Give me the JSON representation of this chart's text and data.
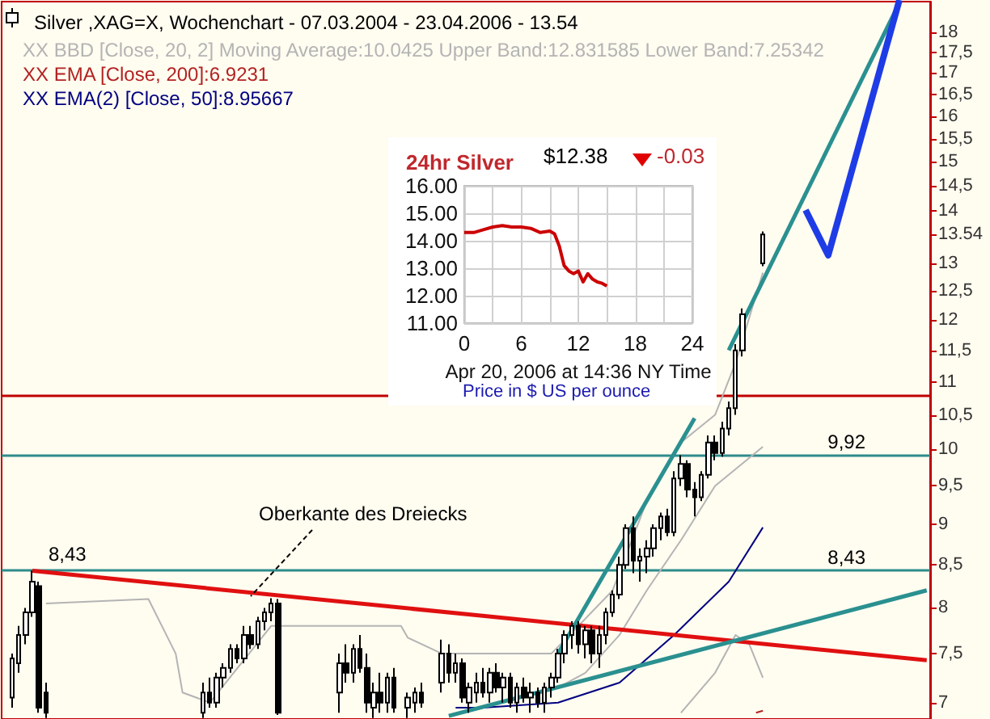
{
  "chart_data": [
    {
      "type": "candlestick",
      "title": "Silver ,XAG=X, Wochenchart - 07.03.2004 - 23.04.2006 - 13.54",
      "color": "#000000",
      "legend": "top left",
      "tick_labels": "y",
      "log": true,
      "categories": [
        null,
        null,
        null,
        null,
        null,
        null,
        null,
        null,
        null,
        null,
        null,
        null,
        null,
        null,
        null,
        null,
        null,
        null,
        null,
        null,
        null,
        null,
        null,
        null,
        null,
        null,
        null,
        null,
        null,
        null,
        null,
        null,
        null,
        null,
        null,
        null,
        null,
        null,
        null,
        null,
        null,
        null,
        null,
        null,
        null,
        null,
        null,
        null,
        null,
        null,
        null,
        null,
        null,
        null,
        null,
        null,
        null,
        null,
        null,
        null,
        null,
        null,
        null,
        null,
        null,
        null,
        null,
        null,
        null,
        null,
        null,
        null,
        null,
        null,
        null,
        null,
        null,
        null,
        null,
        null,
        null,
        null,
        null,
        null,
        null,
        null,
        null,
        null,
        null,
        null,
        null,
        null,
        null,
        null,
        null,
        null,
        null,
        null,
        null,
        null,
        null,
        null,
        null,
        null,
        null,
        null,
        null,
        null,
        null,
        null,
        null,
        null,
        null,
        null,
        null,
        null,
        null,
        null,
        null,
        null,
        null,
        null,
        null,
        null,
        null,
        null,
        null,
        null,
        null,
        null,
        null,
        null,
        null,
        null,
        null,
        null
      ],
      "ohlc": [
        null,
        [
          7.05,
          7.5,
          6.95,
          7.45
        ],
        [
          7.4,
          7.8,
          7.3,
          7.7
        ],
        [
          7.7,
          8.0,
          7.6,
          7.95
        ],
        [
          7.95,
          8.43,
          7.9,
          8.3
        ],
        [
          8.25,
          8.3,
          6.9,
          6.95
        ],
        [
          7.1,
          7.2,
          6.85,
          6.9
        ],
        null,
        null,
        null,
        null,
        null,
        null,
        null,
        null,
        null,
        null,
        null,
        null,
        null,
        null,
        null,
        null,
        null,
        null,
        null,
        null,
        null,
        null,
        [
          6.9,
          7.2,
          6.85,
          7.1
        ],
        [
          7.1,
          7.25,
          6.95,
          7.0
        ],
        [
          7.0,
          7.3,
          6.95,
          7.25
        ],
        [
          7.25,
          7.4,
          7.15,
          7.35
        ],
        [
          7.35,
          7.6,
          7.3,
          7.55
        ],
        [
          7.55,
          7.6,
          7.4,
          7.45
        ],
        [
          7.45,
          7.8,
          7.4,
          7.7
        ],
        [
          7.7,
          7.8,
          7.55,
          7.6
        ],
        [
          7.6,
          7.9,
          7.55,
          7.85
        ],
        [
          7.85,
          8.0,
          7.75,
          7.95
        ],
        [
          7.95,
          8.11,
          7.85,
          8.05
        ],
        [
          8.05,
          8.1,
          6.88,
          6.9
        ],
        null,
        null,
        null,
        null,
        null,
        null,
        null,
        null,
        [
          7.1,
          7.5,
          6.9,
          7.4
        ],
        [
          7.4,
          7.6,
          7.2,
          7.3
        ],
        [
          7.3,
          7.6,
          7.2,
          7.55
        ],
        [
          7.55,
          7.7,
          7.3,
          7.35
        ],
        [
          7.35,
          7.5,
          6.9,
          7.0
        ],
        [
          6.95,
          7.2,
          6.85,
          7.1
        ],
        [
          7.1,
          7.3,
          6.9,
          7.0
        ],
        [
          7.0,
          7.3,
          6.9,
          7.25
        ],
        [
          7.25,
          7.35,
          6.9,
          6.95
        ],
        null,
        [
          6.95,
          7.1,
          6.85,
          7.05
        ],
        [
          7.0,
          7.15,
          6.9,
          7.1
        ],
        [
          7.1,
          7.2,
          6.95,
          7.0
        ],
        null,
        null,
        [
          7.2,
          7.65,
          7.1,
          7.5
        ],
        [
          7.5,
          7.6,
          7.2,
          7.3
        ],
        [
          7.3,
          7.5,
          7.2,
          7.4
        ],
        [
          7.4,
          7.45,
          7.0,
          7.05
        ],
        [
          7.0,
          7.2,
          6.9,
          7.15
        ],
        [
          7.1,
          7.3,
          7.0,
          7.2
        ],
        [
          7.2,
          7.35,
          7.05,
          7.1
        ],
        [
          7.1,
          7.35,
          7.0,
          7.3
        ],
        [
          7.3,
          7.4,
          7.1,
          7.15
        ],
        [
          7.15,
          7.3,
          7.0,
          7.25
        ],
        [
          7.25,
          7.3,
          6.95,
          7.0
        ],
        [
          7.0,
          7.2,
          6.9,
          7.15
        ],
        [
          7.15,
          7.25,
          7.0,
          7.05
        ],
        [
          7.05,
          7.2,
          6.9,
          7.1
        ],
        [
          7.1,
          7.15,
          6.95,
          7.0
        ],
        [
          7.0,
          7.2,
          6.9,
          7.15
        ],
        [
          7.15,
          7.3,
          7.05,
          7.25
        ],
        [
          7.25,
          7.55,
          7.2,
          7.5
        ],
        [
          7.5,
          7.75,
          7.4,
          7.7
        ],
        [
          7.7,
          7.85,
          7.55,
          7.8
        ],
        [
          7.8,
          7.85,
          7.5,
          7.6
        ],
        [
          7.6,
          7.8,
          7.45,
          7.75
        ],
        [
          7.75,
          7.8,
          7.4,
          7.5
        ],
        [
          7.5,
          7.8,
          7.35,
          7.7
        ],
        [
          7.7,
          8.0,
          7.6,
          7.95
        ],
        [
          7.95,
          8.2,
          7.9,
          8.15
        ],
        [
          8.15,
          8.6,
          8.1,
          8.5
        ],
        [
          8.5,
          9.0,
          8.45,
          8.95
        ],
        [
          8.95,
          9.1,
          8.4,
          8.55
        ],
        [
          8.55,
          8.7,
          8.3,
          8.6
        ],
        [
          8.6,
          8.8,
          8.4,
          8.7
        ],
        [
          8.7,
          9.0,
          8.6,
          8.95
        ],
        [
          8.95,
          9.15,
          8.8,
          9.1
        ],
        [
          9.1,
          9.2,
          8.85,
          8.9
        ],
        [
          8.9,
          9.7,
          8.85,
          9.6
        ],
        [
          9.6,
          9.92,
          9.5,
          9.8
        ],
        [
          9.8,
          9.85,
          9.35,
          9.45
        ],
        [
          9.45,
          9.55,
          9.1,
          9.35
        ],
        [
          9.35,
          9.7,
          9.3,
          9.65
        ],
        [
          9.65,
          10.2,
          9.6,
          10.1
        ],
        [
          10.1,
          10.2,
          9.85,
          9.95
        ],
        [
          9.95,
          10.4,
          9.9,
          10.3
        ],
        [
          10.3,
          10.7,
          10.2,
          10.6
        ],
        [
          10.6,
          11.6,
          10.5,
          11.5
        ],
        [
          11.5,
          12.2,
          11.4,
          12.1
        ],
        null,
        null,
        [
          13.0,
          13.6,
          12.95,
          13.54
        ],
        null,
        null,
        null,
        null,
        null,
        null,
        null,
        null,
        null,
        null,
        null,
        null,
        null,
        null,
        null,
        null,
        null,
        null,
        null,
        null,
        null,
        null,
        null,
        null
      ],
      "series": [
        {
          "type": "line",
          "name": "XX BBD [Close, 20, 2] Moving Average:10.0425 Upper Band:12.831585 Lower Band:7.25342",
          "color": "#b4b4b4",
          "values": [
            null,
            null,
            null,
            null,
            null,
            null,
            null,
            null,
            null,
            null,
            null,
            null,
            null,
            null,
            null,
            null,
            null,
            null,
            null,
            null,
            null,
            null,
            null,
            null,
            null,
            null,
            null,
            null,
            null,
            null,
            null,
            null,
            null,
            null,
            null,
            null,
            null,
            null,
            null,
            null,
            null,
            null,
            null,
            null,
            null,
            null,
            null,
            null,
            null,
            null,
            null,
            null,
            null,
            null,
            null,
            null,
            null,
            null,
            null,
            null,
            null,
            null,
            null,
            null,
            null,
            null,
            null,
            null,
            null,
            null,
            null,
            null,
            null,
            null,
            null,
            null,
            null,
            null,
            null,
            null,
            null,
            7.15,
            null,
            null,
            null,
            7.3,
            null,
            null,
            null,
            null,
            7.7,
            null,
            null,
            null,
            8.2,
            null,
            null,
            null,
            null,
            8.8,
            null,
            null,
            null,
            null,
            9.5,
            null,
            null,
            null,
            null,
            null,
            null,
            10.04,
            null,
            null,
            null,
            null,
            null,
            null,
            null,
            null,
            null,
            null,
            null,
            null,
            null,
            null,
            null,
            null,
            null,
            null,
            null,
            null,
            null,
            null,
            null,
            null
          ]
        },
        {
          "type": "line",
          "color": "#b4b4b4",
          "values": [
            null,
            null,
            null,
            null,
            null,
            null,
            8.05,
            null,
            null,
            null,
            null,
            null,
            null,
            null,
            null,
            null,
            null,
            null,
            null,
            null,
            null,
            8.1,
            null,
            null,
            null,
            7.5,
            7.1,
            null,
            null,
            null,
            7.0,
            null,
            null,
            null,
            null,
            null,
            null,
            null,
            null,
            7.8,
            null,
            null,
            null,
            null,
            null,
            null,
            null,
            7.8,
            null,
            null,
            null,
            null,
            null,
            null,
            null,
            null,
            null,
            null,
            7.8,
            7.67,
            null,
            null,
            null,
            null,
            7.5,
            null,
            null,
            null,
            null,
            null,
            null,
            null,
            null,
            null,
            null,
            null,
            null,
            null,
            null,
            null,
            7.5,
            null,
            null,
            null,
            7.8,
            null,
            null,
            null,
            null,
            8.2,
            null,
            null,
            null,
            null,
            9.3,
            null,
            null,
            null,
            null,
            10.1,
            null,
            null,
            null,
            null,
            10.5,
            null,
            null,
            11.3,
            null,
            null,
            null,
            12.83,
            null,
            null,
            null,
            null,
            null,
            null,
            null,
            null,
            null,
            null,
            null,
            null,
            null,
            null,
            null,
            null,
            null,
            null,
            null,
            null,
            null,
            null,
            null,
            null
          ]
        },
        {
          "type": "line",
          "color": "#b4b4b4",
          "values": [
            null,
            null,
            null,
            null,
            null,
            null,
            null,
            null,
            null,
            null,
            null,
            null,
            null,
            null,
            null,
            null,
            null,
            null,
            null,
            null,
            null,
            null,
            null,
            null,
            null,
            null,
            null,
            null,
            null,
            null,
            null,
            null,
            null,
            null,
            null,
            null,
            null,
            null,
            null,
            null,
            null,
            null,
            null,
            null,
            null,
            null,
            null,
            null,
            null,
            null,
            null,
            null,
            null,
            null,
            null,
            null,
            null,
            null,
            null,
            null,
            null,
            null,
            null,
            null,
            null,
            null,
            null,
            null,
            null,
            null,
            null,
            null,
            null,
            null,
            null,
            null,
            null,
            null,
            null,
            null,
            null,
            null,
            null,
            null,
            null,
            null,
            null,
            null,
            null,
            null,
            null,
            null,
            null,
            null,
            null,
            null,
            null,
            null,
            null,
            6.9,
            null,
            null,
            null,
            null,
            7.3,
            null,
            null,
            7.7,
            null,
            7.6,
            null,
            7.25,
            null,
            null,
            null,
            null,
            null,
            null,
            null,
            null,
            null,
            null,
            null,
            null,
            null,
            null,
            null,
            null,
            null,
            null,
            null,
            null,
            null,
            null,
            null,
            null
          ]
        },
        {
          "type": "line",
          "name": "XX EMA [Close, 200]:6.9231",
          "color": "#b22222",
          "values": [
            null,
            null,
            null,
            null,
            null,
            null,
            null,
            null,
            null,
            null,
            null,
            null,
            null,
            null,
            null,
            null,
            null,
            null,
            null,
            null,
            null,
            null,
            null,
            null,
            null,
            null,
            null,
            null,
            null,
            null,
            null,
            null,
            null,
            null,
            null,
            null,
            null,
            null,
            null,
            null,
            null,
            null,
            null,
            null,
            null,
            null,
            null,
            null,
            null,
            null,
            null,
            null,
            null,
            null,
            null,
            null,
            null,
            null,
            null,
            null,
            null,
            null,
            null,
            null,
            null,
            null,
            null,
            null,
            null,
            null,
            null,
            null,
            null,
            null,
            null,
            null,
            null,
            null,
            null,
            null,
            null,
            null,
            null,
            null,
            null,
            null,
            null,
            null,
            null,
            null,
            null,
            null,
            null,
            null,
            null,
            null,
            null,
            null,
            null,
            null,
            null,
            null,
            null,
            null,
            null,
            null,
            null,
            null,
            null,
            null,
            6.9,
            6.92,
            null,
            null,
            null,
            null,
            null,
            null,
            null,
            null,
            null,
            null,
            null,
            null,
            null,
            null,
            null,
            null,
            null,
            null,
            null,
            null,
            null,
            null,
            null,
            null
          ]
        },
        {
          "type": "line",
          "name": "XX EMA(2) [Close, 50]:8.95667",
          "color": "#000080",
          "values": [
            null,
            null,
            null,
            null,
            null,
            null,
            null,
            null,
            null,
            null,
            null,
            null,
            null,
            null,
            null,
            null,
            null,
            null,
            null,
            null,
            null,
            null,
            null,
            null,
            null,
            null,
            null,
            null,
            null,
            null,
            null,
            null,
            null,
            null,
            null,
            null,
            null,
            null,
            null,
            null,
            null,
            null,
            null,
            null,
            null,
            null,
            null,
            null,
            null,
            null,
            null,
            null,
            null,
            null,
            null,
            null,
            null,
            null,
            null,
            null,
            null,
            null,
            null,
            null,
            null,
            null,
            6.95,
            null,
            null,
            null,
            6.95,
            null,
            null,
            null,
            null,
            null,
            null,
            null,
            null,
            null,
            null,
            7.0,
            null,
            null,
            null,
            null,
            null,
            null,
            null,
            null,
            7.2,
            null,
            null,
            null,
            null,
            null,
            null,
            null,
            7.7,
            null,
            null,
            null,
            null,
            null,
            null,
            null,
            8.3,
            null,
            null,
            null,
            null,
            8.96,
            null,
            null,
            null,
            null,
            null,
            null,
            null,
            null,
            null,
            null,
            null,
            null,
            null,
            null,
            null,
            null,
            null,
            null,
            null,
            null,
            null,
            null,
            null,
            null
          ]
        },
        {
          "type": "line",
          "color": "#e01010",
          "values": [
            null,
            null,
            null,
            null,
            8.43,
            null,
            null,
            null,
            null,
            null,
            null,
            null,
            null,
            null,
            null,
            null,
            null,
            null,
            null,
            null,
            null,
            null,
            null,
            null,
            null,
            null,
            null,
            null,
            null,
            null,
            null,
            null,
            null,
            null,
            null,
            null,
            null,
            null,
            null,
            null,
            null,
            null,
            null,
            null,
            null,
            null,
            null,
            null,
            null,
            null,
            null,
            null,
            null,
            null,
            null,
            null,
            null,
            null,
            null,
            null,
            null,
            null,
            null,
            null,
            null,
            null,
            null,
            null,
            null,
            null,
            null,
            null,
            null,
            null,
            null,
            null,
            null,
            null,
            null,
            null,
            null,
            null,
            null,
            null,
            null,
            null,
            null,
            null,
            null,
            null,
            null,
            null,
            null,
            null,
            null,
            null,
            null,
            null,
            null,
            null,
            null,
            null,
            null,
            null,
            null,
            null,
            null,
            null,
            null,
            null,
            null,
            null,
            null,
            null,
            null,
            null,
            null,
            null,
            null,
            null,
            null,
            null,
            null,
            null,
            null,
            null,
            null,
            null,
            null,
            null,
            null,
            null,
            null,
            null,
            null,
            7.43
          ]
        },
        {
          "type": "line",
          "color": "#2a9090",
          "values": [
            null,
            null,
            null,
            null,
            null,
            null,
            null,
            null,
            null,
            null,
            null,
            null,
            null,
            null,
            null,
            null,
            null,
            null,
            null,
            null,
            null,
            null,
            null,
            null,
            null,
            null,
            null,
            null,
            null,
            null,
            null,
            null,
            null,
            null,
            null,
            null,
            null,
            null,
            null,
            null,
            null,
            null,
            null,
            null,
            null,
            null,
            null,
            null,
            null,
            null,
            null,
            null,
            null,
            null,
            null,
            null,
            null,
            null,
            null,
            null,
            null,
            null,
            null,
            null,
            null,
            6.87,
            null,
            null,
            null,
            null,
            null,
            null,
            null,
            null,
            null,
            null,
            null,
            null,
            null,
            null,
            null,
            null,
            null,
            null,
            null,
            null,
            null,
            null,
            null,
            null,
            null,
            null,
            null,
            null,
            null,
            null,
            null,
            null,
            null,
            null,
            null,
            null,
            null,
            null,
            null,
            null,
            null,
            null,
            null,
            null,
            null,
            null,
            null,
            null,
            null,
            null,
            null,
            null,
            null,
            null,
            null,
            null,
            null,
            null,
            null,
            null,
            null,
            null,
            null,
            null,
            null,
            null,
            null,
            null,
            null,
            8.2
          ]
        },
        {
          "type": "line",
          "color": "#2a9090",
          "values": [
            null,
            null,
            null,
            null,
            null,
            null,
            null,
            null,
            null,
            null,
            null,
            null,
            null,
            null,
            null,
            null,
            null,
            null,
            null,
            null,
            null,
            null,
            null,
            null,
            null,
            null,
            null,
            null,
            null,
            null,
            null,
            null,
            null,
            null,
            null,
            null,
            null,
            null,
            null,
            null,
            null,
            null,
            null,
            null,
            null,
            null,
            null,
            null,
            null,
            null,
            null,
            null,
            null,
            null,
            null,
            null,
            null,
            null,
            null,
            null,
            null,
            null,
            null,
            null,
            null,
            null,
            null,
            null,
            null,
            null,
            null,
            null,
            null,
            null,
            null,
            null,
            null,
            null,
            null,
            null,
            null,
            7.5,
            null,
            null,
            null,
            null,
            null,
            null,
            null,
            null,
            null,
            null,
            null,
            null,
            null,
            null,
            null,
            null,
            null,
            null,
            null,
            10.45,
            null,
            null,
            null,
            null,
            null,
            null,
            null,
            null,
            null,
            null,
            null,
            null,
            null,
            null,
            null,
            null,
            null,
            null,
            null,
            null,
            null,
            null,
            null,
            null,
            null,
            null,
            null,
            null,
            null,
            null,
            null,
            null,
            null,
            null
          ]
        },
        {
          "type": "line",
          "color": "#2a9090",
          "values": [
            null,
            null,
            null,
            null,
            null,
            null,
            null,
            null,
            null,
            null,
            null,
            null,
            null,
            null,
            null,
            null,
            null,
            null,
            null,
            null,
            null,
            null,
            null,
            null,
            null,
            null,
            null,
            null,
            null,
            null,
            null,
            null,
            null,
            null,
            null,
            null,
            null,
            null,
            null,
            null,
            null,
            null,
            null,
            null,
            null,
            null,
            null,
            null,
            null,
            null,
            null,
            null,
            null,
            null,
            null,
            null,
            null,
            null,
            null,
            null,
            null,
            null,
            null,
            null,
            null,
            null,
            null,
            null,
            null,
            null,
            null,
            null,
            null,
            null,
            null,
            null,
            null,
            null,
            null,
            null,
            null,
            null,
            null,
            null,
            null,
            null,
            null,
            null,
            null,
            null,
            null,
            null,
            null,
            null,
            null,
            null,
            null,
            null,
            null,
            null,
            null,
            null,
            null,
            null,
            null,
            null,
            11.5,
            null,
            null,
            null,
            null,
            null,
            null,
            null,
            null,
            null,
            null,
            null,
            null,
            null,
            null,
            null,
            null,
            null,
            null,
            null,
            null,
            null,
            null,
            null,
            null,
            18.77,
            null,
            null,
            null,
            null
          ]
        }
      ],
      "ylim": [
        6.84,
        18.8
      ],
      "yticks": [
        7,
        {
          "value": 7.5,
          "label": "7,5"
        },
        8,
        {
          "value": 8.5,
          "label": "8,5"
        },
        9,
        {
          "value": 9.5,
          "label": "9,5"
        },
        10,
        {
          "value": 10.5,
          "label": "10,5"
        },
        11,
        {
          "value": 11.5,
          "label": "11,5"
        },
        12,
        {
          "value": 12.5,
          "label": "12,5"
        },
        13,
        13.54,
        14,
        {
          "value": 14.5,
          "label": "14,5"
        },
        15,
        {
          "value": 15.5,
          "label": "15,5"
        },
        16,
        {
          "value": 16.5,
          "label": "16,5"
        },
        17,
        {
          "value": 17.5,
          "label": "17,5"
        },
        18
      ],
      "ref_lines": [
        {
          "axis": "y",
          "value": 8.43,
          "label": "8,43",
          "color": "#2e8b8b"
        },
        {
          "axis": "y",
          "value": 9.92,
          "label": "9,92",
          "color": "#2e8b8b"
        },
        {
          "axis": "y",
          "value": 10.8,
          "label": null,
          "color": "#c00000"
        }
      ],
      "annotations": [
        "Oberkante des Dreiecks",
        {
          "text": "8,43",
          "y": 8.43
        }
      ]
    },
    {
      "type": "line",
      "title": "24hr Silver",
      "xlabel": "Apr 20, 2006 at 14:36 NY Time",
      "grid": true,
      "xlim": [
        0,
        24
      ],
      "xticks": [
        0,
        {
          "value": 3,
          "label": null
        },
        6,
        {
          "value": 9,
          "label": null
        },
        12,
        {
          "value": 15,
          "label": null
        },
        18,
        {
          "value": 21,
          "label": null
        },
        24
      ],
      "ylim": [
        11,
        16
      ],
      "yticks": [
        {
          "value": 11,
          "label": "11.00"
        },
        {
          "value": 12,
          "label": "12.00"
        },
        {
          "value": 13,
          "label": "13.00"
        },
        {
          "value": 14,
          "label": "14.00"
        },
        {
          "value": 15,
          "label": "15.00"
        },
        {
          "value": 16,
          "label": "16.00"
        }
      ],
      "series": [
        {
          "color": "#cc0000",
          "x": [
            0,
            1,
            2,
            3,
            4,
            5,
            6,
            7,
            8,
            9,
            9.5,
            10,
            10.5,
            11,
            11.5,
            12,
            12.5,
            13,
            13.5,
            14,
            14.5,
            15
          ],
          "values": [
            14.3,
            14.3,
            14.4,
            14.5,
            14.55,
            14.5,
            14.5,
            14.45,
            14.3,
            14.35,
            14.25,
            13.8,
            13.1,
            12.9,
            12.8,
            12.9,
            12.5,
            12.8,
            12.6,
            12.5,
            12.45,
            12.35
          ]
        }
      ],
      "annotations": [
        "$12.38",
        "-0.03",
        "Price in $ US per ounce"
      ]
    }
  ]
}
